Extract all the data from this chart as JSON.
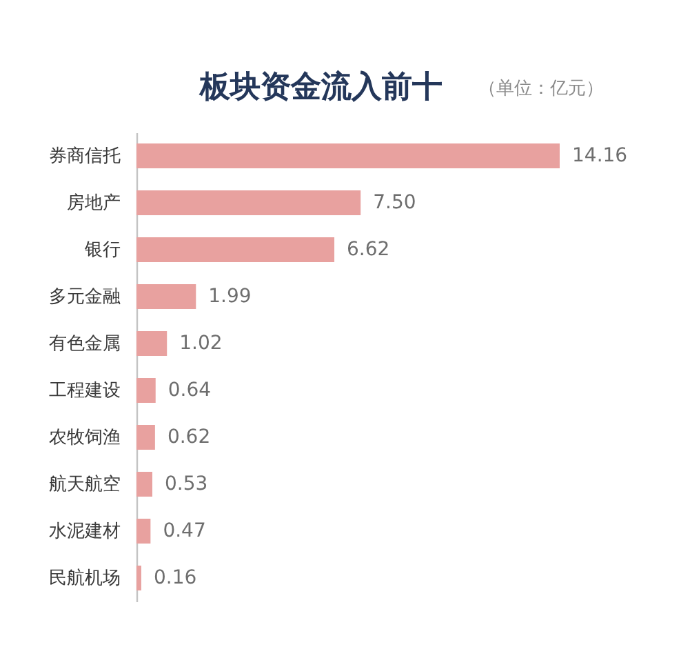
{
  "chart_data": {
    "type": "bar",
    "orientation": "horizontal",
    "title": "板块资金流入前十",
    "subtitle": "（单位：亿元）",
    "categories": [
      "券商信托",
      "房地产",
      "银行",
      "多元金融",
      "有色金属",
      "工程建设",
      "农牧饲渔",
      "航天航空",
      "水泥建材",
      "民航机场"
    ],
    "values": [
      14.16,
      7.5,
      6.62,
      1.99,
      1.02,
      0.64,
      0.62,
      0.53,
      0.47,
      0.16
    ],
    "value_labels": [
      "14.16",
      "7.50",
      "6.62",
      "1.99",
      "1.02",
      "0.64",
      "0.62",
      "0.53",
      "0.47",
      "0.16"
    ],
    "color": "#e8a19f",
    "tick_labels": "y"
  }
}
